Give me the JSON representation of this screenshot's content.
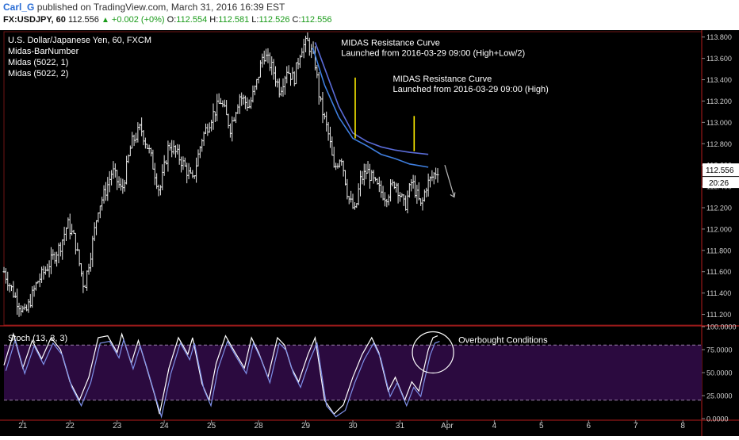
{
  "header": {
    "author": "Carl_G",
    "published": "published on TradingView.com, March 31, 2016 16:39 EST",
    "symbol": "FX:USDJPY, 60",
    "last": "112.556",
    "change": "+0.002 (+0%)",
    "o_label": "O:",
    "o_val": "112.554",
    "h_label": "H:",
    "h_val": "112.581",
    "l_label": "L:",
    "l_val": "112.526",
    "c_label": "C:",
    "c_val": "112.556"
  },
  "chart_data": [
    {
      "type": "candlestick",
      "title": "U.S. Dollar/Japanese Yen, 60, FXCM",
      "indicators": [
        "Midas-BarNumber",
        "Midas (5022, 1)",
        "Midas (5022, 2)"
      ],
      "ylim": [
        111.1,
        113.85
      ],
      "yticks": [
        "113.800",
        "113.600",
        "113.400",
        "113.200",
        "113.000",
        "112.800",
        "112.600",
        "112.400",
        "112.200",
        "112.000",
        "111.800",
        "111.600",
        "111.400",
        "111.200"
      ],
      "ytick_values": [
        113.8,
        113.6,
        113.4,
        113.2,
        113.0,
        112.8,
        112.6,
        112.4,
        112.2,
        112.0,
        111.8,
        111.6,
        111.4,
        111.2
      ],
      "x_labels": [
        "21",
        "22",
        "23",
        "24",
        "25",
        "28",
        "29",
        "30",
        "31",
        "Apr",
        "4",
        "5",
        "6",
        "7",
        "8"
      ],
      "x_label_positions": [
        0.4,
        1.4,
        2.4,
        3.4,
        4.4,
        5.4,
        6.4,
        7.4,
        8.4,
        9.4,
        10.4,
        11.4,
        12.4,
        13.4,
        14.4
      ],
      "close_path": [
        [
          0,
          111.6
        ],
        [
          0.25,
          111.35
        ],
        [
          0.45,
          111.2
        ],
        [
          0.7,
          111.5
        ],
        [
          1.0,
          111.7
        ],
        [
          1.2,
          111.85
        ],
        [
          1.35,
          112.05
        ],
        [
          1.5,
          111.9
        ],
        [
          1.7,
          111.45
        ],
        [
          1.85,
          111.8
        ],
        [
          2.0,
          112.2
        ],
        [
          2.15,
          112.35
        ],
        [
          2.3,
          112.55
        ],
        [
          2.5,
          112.35
        ],
        [
          2.7,
          112.8
        ],
        [
          2.9,
          112.95
        ],
        [
          3.1,
          112.7
        ],
        [
          3.3,
          112.35
        ],
        [
          3.5,
          112.8
        ],
        [
          3.75,
          112.65
        ],
        [
          4.0,
          112.45
        ],
        [
          4.2,
          112.85
        ],
        [
          4.4,
          113.05
        ],
        [
          4.6,
          113.2
        ],
        [
          4.8,
          112.95
        ],
        [
          5.0,
          113.25
        ],
        [
          5.2,
          113.15
        ],
        [
          5.35,
          113.35
        ],
        [
          5.5,
          113.65
        ],
        [
          5.7,
          113.5
        ],
        [
          5.85,
          113.3
        ],
        [
          6.0,
          113.5
        ],
        [
          6.15,
          113.4
        ],
        [
          6.3,
          113.7
        ],
        [
          6.45,
          113.75
        ],
        [
          6.6,
          113.55
        ],
        [
          6.7,
          113.2
        ],
        [
          6.9,
          112.85
        ],
        [
          7.0,
          112.55
        ],
        [
          7.15,
          112.7
        ],
        [
          7.3,
          112.3
        ],
        [
          7.45,
          112.15
        ],
        [
          7.55,
          112.45
        ],
        [
          7.7,
          112.55
        ],
        [
          7.9,
          112.4
        ],
        [
          8.1,
          112.3
        ],
        [
          8.3,
          112.45
        ],
        [
          8.5,
          112.2
        ],
        [
          8.65,
          112.45
        ],
        [
          8.85,
          112.2
        ],
        [
          8.95,
          112.4
        ],
        [
          9.1,
          112.5
        ],
        [
          9.2,
          112.556
        ]
      ],
      "midas_1": [
        [
          6.55,
          113.7
        ],
        [
          6.8,
          113.35
        ],
        [
          7.1,
          113.05
        ],
        [
          7.4,
          112.85
        ],
        [
          7.7,
          112.78
        ],
        [
          8.0,
          112.7
        ],
        [
          8.3,
          112.66
        ],
        [
          8.6,
          112.61
        ],
        [
          9.0,
          112.58
        ]
      ],
      "midas_2": [
        [
          6.6,
          113.75
        ],
        [
          6.85,
          113.45
        ],
        [
          7.1,
          113.15
        ],
        [
          7.4,
          112.9
        ],
        [
          7.7,
          112.82
        ],
        [
          8.0,
          112.77
        ],
        [
          8.3,
          112.74
        ],
        [
          8.6,
          112.72
        ],
        [
          9.0,
          112.7
        ]
      ],
      "annotations": [
        {
          "line1": "MIDAS Resistance Curve",
          "line2": "Launched from 2016-03-29 09:00 (High+Low/2)"
        },
        {
          "line1": "MIDAS Resistance Curve",
          "line2": "Launched from 2016-03-29 09:00 (High)"
        }
      ],
      "vlines": [
        {
          "x": 7.45,
          "y_top": 113.42,
          "y_bottom": 112.85
        },
        {
          "x": 8.7,
          "y_top": 113.06,
          "y_bottom": 112.73
        }
      ],
      "annotation_anchor_x": [
        7.15,
        8.25
      ],
      "annotation_anchor_y": [
        113.72,
        113.38
      ],
      "forecast_arrow": {
        "x1": 9.35,
        "y1": 112.6,
        "x2": 9.55,
        "y2": 112.3
      },
      "price_label": "112.556",
      "timer_label": "20:26",
      "price_value": 112.556
    },
    {
      "type": "line",
      "title": "Stoch (13, 3, 3)",
      "ylim": [
        0,
        100
      ],
      "yticks": [
        "100.0000",
        "75.0000",
        "50.0000",
        "25.0000",
        "0.0000"
      ],
      "ytick_values": [
        100,
        75,
        50,
        25,
        0
      ],
      "band": [
        20,
        80
      ],
      "series": [
        {
          "values": [
            [
              0,
              58
            ],
            [
              0.2,
              92
            ],
            [
              0.4,
              55
            ],
            [
              0.6,
              85
            ],
            [
              0.8,
              65
            ],
            [
              1.0,
              88
            ],
            [
              1.2,
              75
            ],
            [
              1.4,
              40
            ],
            [
              1.6,
              20
            ],
            [
              1.8,
              45
            ],
            [
              2.0,
              88
            ],
            [
              2.2,
              90
            ],
            [
              2.4,
              72
            ],
            [
              2.5,
              92
            ],
            [
              2.7,
              60
            ],
            [
              2.85,
              85
            ],
            [
              3.0,
              60
            ],
            [
              3.2,
              25
            ],
            [
              3.3,
              5
            ],
            [
              3.5,
              55
            ],
            [
              3.7,
              88
            ],
            [
              3.9,
              70
            ],
            [
              4.0,
              88
            ],
            [
              4.2,
              38
            ],
            [
              4.35,
              20
            ],
            [
              4.5,
              60
            ],
            [
              4.7,
              90
            ],
            [
              4.9,
              72
            ],
            [
              5.1,
              55
            ],
            [
              5.25,
              88
            ],
            [
              5.4,
              72
            ],
            [
              5.6,
              45
            ],
            [
              5.8,
              88
            ],
            [
              5.95,
              80
            ],
            [
              6.1,
              55
            ],
            [
              6.25,
              40
            ],
            [
              6.45,
              70
            ],
            [
              6.6,
              88
            ],
            [
              6.8,
              20
            ],
            [
              7.0,
              5
            ],
            [
              7.2,
              15
            ],
            [
              7.4,
              45
            ],
            [
              7.6,
              70
            ],
            [
              7.8,
              88
            ],
            [
              7.95,
              72
            ],
            [
              8.15,
              30
            ],
            [
              8.3,
              45
            ],
            [
              8.5,
              20
            ],
            [
              8.65,
              40
            ],
            [
              8.8,
              30
            ],
            [
              9.0,
              75
            ],
            [
              9.1,
              88
            ],
            [
              9.2,
              90
            ]
          ]
        }
      ],
      "annotation": "Overbought Conditions",
      "circle": {
        "x": 9.1,
        "y": 72
      }
    }
  ]
}
